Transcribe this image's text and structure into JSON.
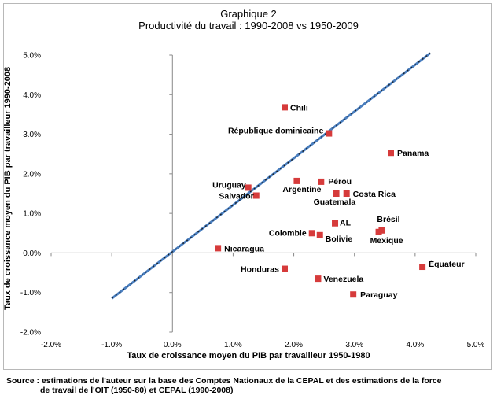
{
  "chart_data": {
    "type": "scatter",
    "title": "Graphique 2",
    "subtitle": "Productivité du travail : 1990-2008 vs 1950-2009",
    "xlabel": "Taux de croissance moyen du PIB par travailleur 1950-1980",
    "ylabel": "Taux de croissance moyen du PIB par travailleur 1990-2008",
    "xlim": [
      -0.02,
      0.05
    ],
    "ylim": [
      -0.02,
      0.05
    ],
    "x_ticks": [
      "-2.0%",
      "-1.0%",
      "0.0%",
      "1.0%",
      "2.0%",
      "3.0%",
      "4.0%",
      "5.0%"
    ],
    "y_ticks": [
      "-2.0%",
      "-1.0%",
      "0.0%",
      "1.0%",
      "2.0%",
      "3.0%",
      "4.0%",
      "5.0%"
    ],
    "grid": false,
    "marker_color": "#d63b3b",
    "line_color": "#4a7fc0",
    "diagonal": {
      "x": [
        -0.01,
        0.0425
      ],
      "y": [
        -0.0115,
        0.0505
      ]
    },
    "points": [
      {
        "label": "Chili",
        "x": 0.0185,
        "y": 0.0368
      },
      {
        "label": "République dominicaine",
        "x": 0.0258,
        "y": 0.0302
      },
      {
        "label": "Panama",
        "x": 0.036,
        "y": 0.0253
      },
      {
        "label": "Pérou",
        "x": 0.0245,
        "y": 0.018
      },
      {
        "label": "Argentine",
        "x": 0.0205,
        "y": 0.0182
      },
      {
        "label": "Uruguay",
        "x": 0.0125,
        "y": 0.0165
      },
      {
        "label": "Salvador",
        "x": 0.0138,
        "y": 0.0145
      },
      {
        "label": "Costa Rica",
        "x": 0.0287,
        "y": 0.015
      },
      {
        "label": "Guatemala",
        "x": 0.027,
        "y": 0.015
      },
      {
        "label": "AL",
        "x": 0.0268,
        "y": 0.0075
      },
      {
        "label": "Brésil",
        "x": 0.0345,
        "y": 0.0057
      },
      {
        "label": "Mexique",
        "x": 0.034,
        "y": 0.0053
      },
      {
        "label": "Colombie",
        "x": 0.023,
        "y": 0.005
      },
      {
        "label": "Bolivie",
        "x": 0.0243,
        "y": 0.0045
      },
      {
        "label": "Nicaragua",
        "x": 0.0075,
        "y": 0.0012
      },
      {
        "label": "Honduras",
        "x": 0.0185,
        "y": -0.004
      },
      {
        "label": "Venezuela",
        "x": 0.024,
        "y": -0.0065
      },
      {
        "label": "Équateur",
        "x": 0.0412,
        "y": -0.0035
      },
      {
        "label": "Paraguay",
        "x": 0.0298,
        "y": -0.0105
      }
    ]
  },
  "source": {
    "line1": "Source : estimations de l'auteur sur la base des Comptes Nationaux de la CEPAL et des estimations de la force",
    "line2": "de travail de l'OIT (1950-80) et CEPAL (1990-2008)"
  }
}
